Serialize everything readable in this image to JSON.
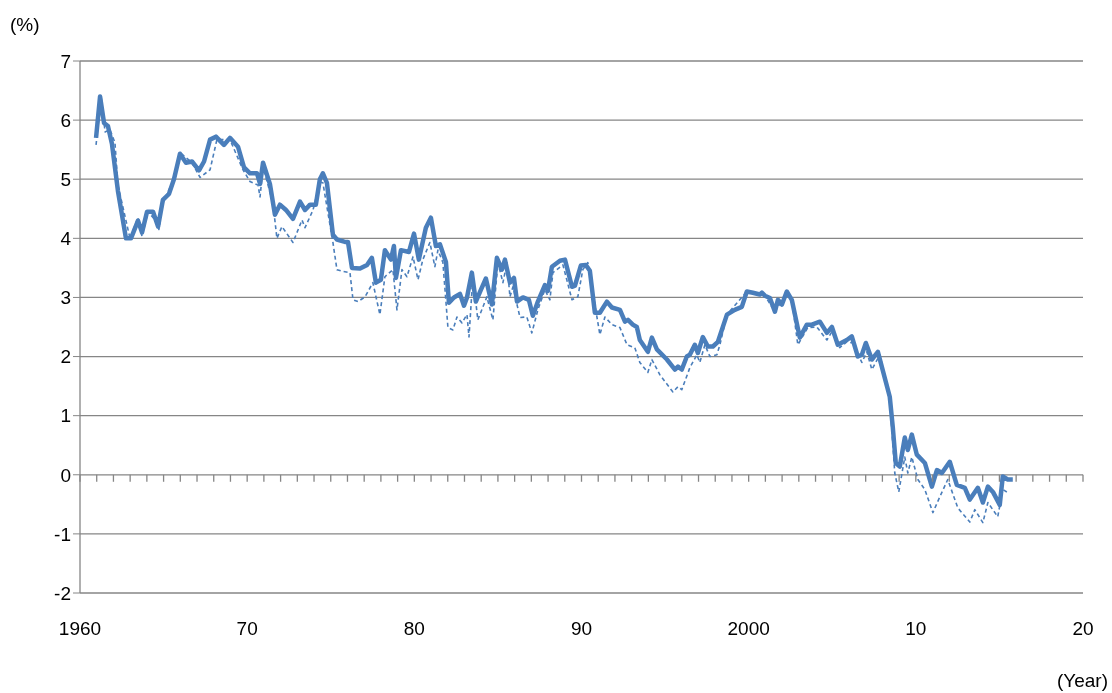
{
  "chart_data": {
    "type": "line",
    "xlabel": "(Year)",
    "ylabel": "(%)",
    "xlim": [
      1960,
      2020
    ],
    "ylim": [
      -2,
      7
    ],
    "yticks": [
      -2,
      -1,
      0,
      1,
      2,
      3,
      4,
      5,
      6,
      7
    ],
    "xticks": [
      {
        "value": 1960,
        "label": "1960"
      },
      {
        "value": 1961,
        "label": null
      },
      {
        "value": 1962,
        "label": null
      },
      {
        "value": 1963,
        "label": null
      },
      {
        "value": 1964,
        "label": null
      },
      {
        "value": 1965,
        "label": null
      },
      {
        "value": 1966,
        "label": null
      },
      {
        "value": 1967,
        "label": null
      },
      {
        "value": 1968,
        "label": null
      },
      {
        "value": 1969,
        "label": null
      },
      {
        "value": 1970,
        "label": "70"
      },
      {
        "value": 1971,
        "label": null
      },
      {
        "value": 1972,
        "label": null
      },
      {
        "value": 1973,
        "label": null
      },
      {
        "value": 1974,
        "label": null
      },
      {
        "value": 1975,
        "label": null
      },
      {
        "value": 1976,
        "label": null
      },
      {
        "value": 1977,
        "label": null
      },
      {
        "value": 1978,
        "label": null
      },
      {
        "value": 1979,
        "label": null
      },
      {
        "value": 1980,
        "label": "80"
      },
      {
        "value": 1981,
        "label": null
      },
      {
        "value": 1982,
        "label": null
      },
      {
        "value": 1983,
        "label": null
      },
      {
        "value": 1984,
        "label": null
      },
      {
        "value": 1985,
        "label": null
      },
      {
        "value": 1986,
        "label": null
      },
      {
        "value": 1987,
        "label": null
      },
      {
        "value": 1988,
        "label": null
      },
      {
        "value": 1989,
        "label": null
      },
      {
        "value": 1990,
        "label": "90"
      },
      {
        "value": 1991,
        "label": null
      },
      {
        "value": 1992,
        "label": null
      },
      {
        "value": 1993,
        "label": null
      },
      {
        "value": 1994,
        "label": null
      },
      {
        "value": 1995,
        "label": null
      },
      {
        "value": 1996,
        "label": null
      },
      {
        "value": 1997,
        "label": null
      },
      {
        "value": 1998,
        "label": null
      },
      {
        "value": 1999,
        "label": null
      },
      {
        "value": 2000,
        "label": "2000"
      },
      {
        "value": 2001,
        "label": null
      },
      {
        "value": 2002,
        "label": null
      },
      {
        "value": 2003,
        "label": null
      },
      {
        "value": 2004,
        "label": null
      },
      {
        "value": 2005,
        "label": null
      },
      {
        "value": 2006,
        "label": null
      },
      {
        "value": 2007,
        "label": null
      },
      {
        "value": 2008,
        "label": null
      },
      {
        "value": 2009,
        "label": null
      },
      {
        "value": 2010,
        "label": "10"
      },
      {
        "value": 2011,
        "label": null
      },
      {
        "value": 2012,
        "label": null
      },
      {
        "value": 2013,
        "label": null
      },
      {
        "value": 2014,
        "label": null
      },
      {
        "value": 2015,
        "label": null
      },
      {
        "value": 2016,
        "label": null
      },
      {
        "value": 2017,
        "label": null
      },
      {
        "value": 2018,
        "label": null
      },
      {
        "value": 2019,
        "label": null
      },
      {
        "value": 2020,
        "label": "20"
      }
    ],
    "grid": "y",
    "marker": "none",
    "series": [
      {
        "color": "#4a7ebb",
        "line_style": "solid",
        "x": [
          1960.96,
          1961.2,
          1961.44,
          1961.67,
          1961.91,
          1962.27,
          1962.75,
          1963.05,
          1963.47,
          1963.71,
          1964.01,
          1964.37,
          1964.67,
          1964.96,
          1965.32,
          1965.62,
          1965.98,
          1966.34,
          1966.7,
          1967.12,
          1967.42,
          1967.78,
          1968.13,
          1968.61,
          1968.97,
          1969.45,
          1969.81,
          1970.17,
          1970.59,
          1970.77,
          1970.95,
          1971.36,
          1971.66,
          1971.96,
          1972.32,
          1972.74,
          1973.16,
          1973.46,
          1973.76,
          1974.11,
          1974.35,
          1974.53,
          1974.77,
          1975.13,
          1975.37,
          1975.85,
          1976.03,
          1976.27,
          1976.75,
          1977.17,
          1977.46,
          1977.7,
          1978.0,
          1978.24,
          1978.6,
          1978.78,
          1978.9,
          1979.2,
          1979.68,
          1979.98,
          1980.27,
          1980.69,
          1980.99,
          1981.29,
          1981.53,
          1981.89,
          1982.07,
          1982.37,
          1982.73,
          1982.97,
          1983.15,
          1983.44,
          1983.68,
          1983.98,
          1984.28,
          1984.64,
          1984.94,
          1985.24,
          1985.42,
          1985.72,
          1985.96,
          1986.14,
          1986.5,
          1986.85,
          1987.09,
          1987.39,
          1987.81,
          1987.99,
          1988.23,
          1988.71,
          1989.01,
          1989.43,
          1989.61,
          1989.96,
          1990.26,
          1990.5,
          1990.8,
          1991.1,
          1991.52,
          1991.82,
          1992.3,
          1992.6,
          1992.78,
          1993.07,
          1993.31,
          1993.49,
          1993.97,
          1994.21,
          1994.51,
          1995.11,
          1995.59,
          1995.77,
          1996.0,
          1996.3,
          1996.48,
          1996.78,
          1996.96,
          1997.26,
          1997.56,
          1997.86,
          1998.16,
          1998.7,
          1999.17,
          1999.59,
          1999.89,
          2000.25,
          2000.67,
          2000.79,
          2000.97,
          2001.27,
          2001.57,
          2001.75,
          2001.99,
          2002.28,
          2002.58,
          2003.06,
          2003.48,
          2003.78,
          2004.26,
          2004.68,
          2004.98,
          2005.33,
          2005.87,
          2006.17,
          2006.53,
          2006.77,
          2007.01,
          2007.37,
          2007.73,
          2008.44,
          2008.62,
          2008.8,
          2009.04,
          2009.34,
          2009.52,
          2009.76,
          2010.06,
          2010.54,
          2010.96,
          2011.26,
          2011.56,
          2012.03,
          2012.45,
          2012.93,
          2013.23,
          2013.71,
          2014.01,
          2014.31,
          2014.61,
          2015.02,
          2015.2,
          2015.5,
          2015.8
        ],
        "values": [
          5.7,
          6.4,
          5.95,
          5.9,
          5.6,
          4.8,
          4.0,
          4.0,
          4.3,
          4.1,
          4.45,
          4.45,
          4.2,
          4.65,
          4.75,
          5.0,
          5.43,
          5.28,
          5.3,
          5.15,
          5.3,
          5.67,
          5.72,
          5.58,
          5.7,
          5.55,
          5.2,
          5.1,
          5.1,
          4.92,
          5.28,
          4.92,
          4.4,
          4.57,
          4.48,
          4.33,
          4.62,
          4.48,
          4.57,
          4.57,
          5.0,
          5.1,
          4.94,
          4.06,
          3.98,
          3.94,
          3.94,
          3.5,
          3.49,
          3.55,
          3.67,
          3.25,
          3.3,
          3.8,
          3.64,
          3.87,
          3.33,
          3.8,
          3.77,
          4.08,
          3.64,
          4.18,
          4.35,
          3.87,
          3.9,
          3.6,
          2.91,
          3.0,
          3.06,
          2.86,
          3.0,
          3.42,
          2.93,
          3.13,
          3.32,
          2.88,
          3.67,
          3.47,
          3.64,
          3.25,
          3.33,
          2.93,
          3.0,
          2.96,
          2.69,
          2.93,
          3.21,
          3.11,
          3.52,
          3.62,
          3.64,
          3.18,
          3.2,
          3.54,
          3.55,
          3.45,
          2.74,
          2.74,
          2.93,
          2.83,
          2.79,
          2.59,
          2.62,
          2.54,
          2.5,
          2.28,
          2.08,
          2.32,
          2.12,
          1.95,
          1.78,
          1.83,
          1.78,
          2.0,
          2.03,
          2.2,
          2.06,
          2.33,
          2.17,
          2.17,
          2.25,
          2.71,
          2.79,
          2.84,
          3.1,
          3.08,
          3.05,
          3.08,
          3.03,
          2.99,
          2.76,
          2.96,
          2.88,
          3.1,
          2.96,
          2.32,
          2.54,
          2.54,
          2.59,
          2.4,
          2.5,
          2.2,
          2.28,
          2.34,
          2.0,
          2.03,
          2.23,
          1.95,
          2.08,
          1.32,
          0.81,
          0.2,
          0.14,
          0.63,
          0.42,
          0.68,
          0.34,
          0.2,
          -0.2,
          0.08,
          0.03,
          0.22,
          -0.17,
          -0.22,
          -0.42,
          -0.22,
          -0.47,
          -0.2,
          -0.29,
          -0.51,
          -0.03,
          -0.08,
          -0.08
        ]
      },
      {
        "color": "#4a7ebb",
        "line_style": "dashed",
        "x": [
          1960.96,
          1961.26,
          1961.5,
          1961.79,
          1962.09,
          1962.27,
          1962.99,
          1963.47,
          1963.71,
          1964.07,
          1964.49,
          1964.72,
          1964.96,
          1965.62,
          1965.98,
          1966.7,
          1967.18,
          1967.78,
          1968.19,
          1968.97,
          1969.75,
          1970.17,
          1970.65,
          1970.77,
          1970.95,
          1971.54,
          1971.78,
          1972.08,
          1972.74,
          1973.28,
          1973.46,
          1973.94,
          1974.35,
          1974.53,
          1975.13,
          1975.37,
          1975.73,
          1976.15,
          1976.33,
          1976.63,
          1977.05,
          1977.52,
          1977.94,
          1978.24,
          1978.72,
          1978.96,
          1979.26,
          1979.56,
          1979.92,
          1980.22,
          1980.51,
          1980.93,
          1981.23,
          1981.41,
          1981.71,
          1982.01,
          1982.31,
          1982.55,
          1982.85,
          1983.15,
          1983.27,
          1983.5,
          1983.8,
          1984.34,
          1984.7,
          1985.0,
          1985.3,
          1985.54,
          1985.72,
          1985.9,
          1986.32,
          1986.73,
          1987.03,
          1987.39,
          1987.81,
          1988.11,
          1988.29,
          1988.89,
          1989.43,
          1989.78,
          1990.08,
          1990.38,
          1991.1,
          1991.4,
          1991.82,
          1992.3,
          1992.72,
          1993.19,
          1993.49,
          1993.97,
          1994.21,
          1994.69,
          1995.47,
          1995.77,
          1996.0,
          1996.48,
          1996.9,
          1997.08,
          1997.38,
          1997.68,
          1998.1,
          1998.28,
          1998.7,
          1999.89,
          2000.97,
          2001.57,
          2002.28,
          2002.58,
          2002.94,
          2003.54,
          2004.08,
          2004.68,
          2004.98,
          2005.45,
          2005.87,
          2006.23,
          2006.77,
          2007.07,
          2007.37,
          2007.85,
          2008.44,
          2008.74,
          2008.98,
          2009.34,
          2009.52,
          2009.76,
          2010.12,
          2010.54,
          2011.02,
          2011.44,
          2011.91,
          2012.51,
          2013.23,
          2013.53,
          2014.01,
          2014.31,
          2014.9,
          2015.2,
          2015.5
        ],
        "values": [
          5.58,
          6.4,
          5.8,
          5.84,
          5.62,
          4.9,
          4.0,
          4.35,
          4.03,
          4.45,
          4.31,
          4.15,
          4.6,
          5.0,
          5.45,
          5.28,
          5.03,
          5.16,
          5.67,
          5.67,
          5.16,
          4.96,
          4.9,
          4.7,
          5.21,
          4.6,
          4.0,
          4.2,
          3.93,
          4.31,
          4.18,
          4.48,
          4.95,
          4.94,
          3.93,
          3.47,
          3.44,
          3.42,
          2.96,
          2.93,
          3.01,
          3.25,
          2.71,
          3.35,
          3.47,
          2.79,
          3.47,
          3.35,
          3.69,
          3.3,
          3.64,
          3.93,
          3.52,
          3.8,
          3.59,
          2.49,
          2.45,
          2.67,
          2.57,
          2.71,
          2.33,
          3.35,
          2.62,
          3.01,
          2.62,
          3.59,
          3.25,
          3.59,
          3.01,
          3.18,
          2.66,
          2.67,
          2.4,
          2.79,
          3.13,
          2.96,
          3.42,
          3.55,
          2.96,
          3.01,
          3.47,
          3.59,
          2.37,
          2.67,
          2.54,
          2.49,
          2.2,
          2.15,
          1.9,
          1.73,
          1.95,
          1.69,
          1.4,
          1.49,
          1.44,
          1.81,
          2.03,
          1.9,
          2.2,
          2.0,
          2.03,
          2.2,
          2.71,
          3.1,
          3.03,
          2.76,
          3.07,
          2.96,
          2.2,
          2.49,
          2.5,
          2.28,
          2.42,
          2.15,
          2.25,
          2.23,
          1.9,
          2.08,
          1.78,
          2.03,
          1.27,
          0.03,
          -0.29,
          0.3,
          0.03,
          0.3,
          -0.08,
          -0.25,
          -0.64,
          -0.37,
          -0.08,
          -0.56,
          -0.8,
          -0.59,
          -0.81,
          -0.47,
          -0.71,
          -0.25,
          -0.3
        ]
      }
    ]
  }
}
